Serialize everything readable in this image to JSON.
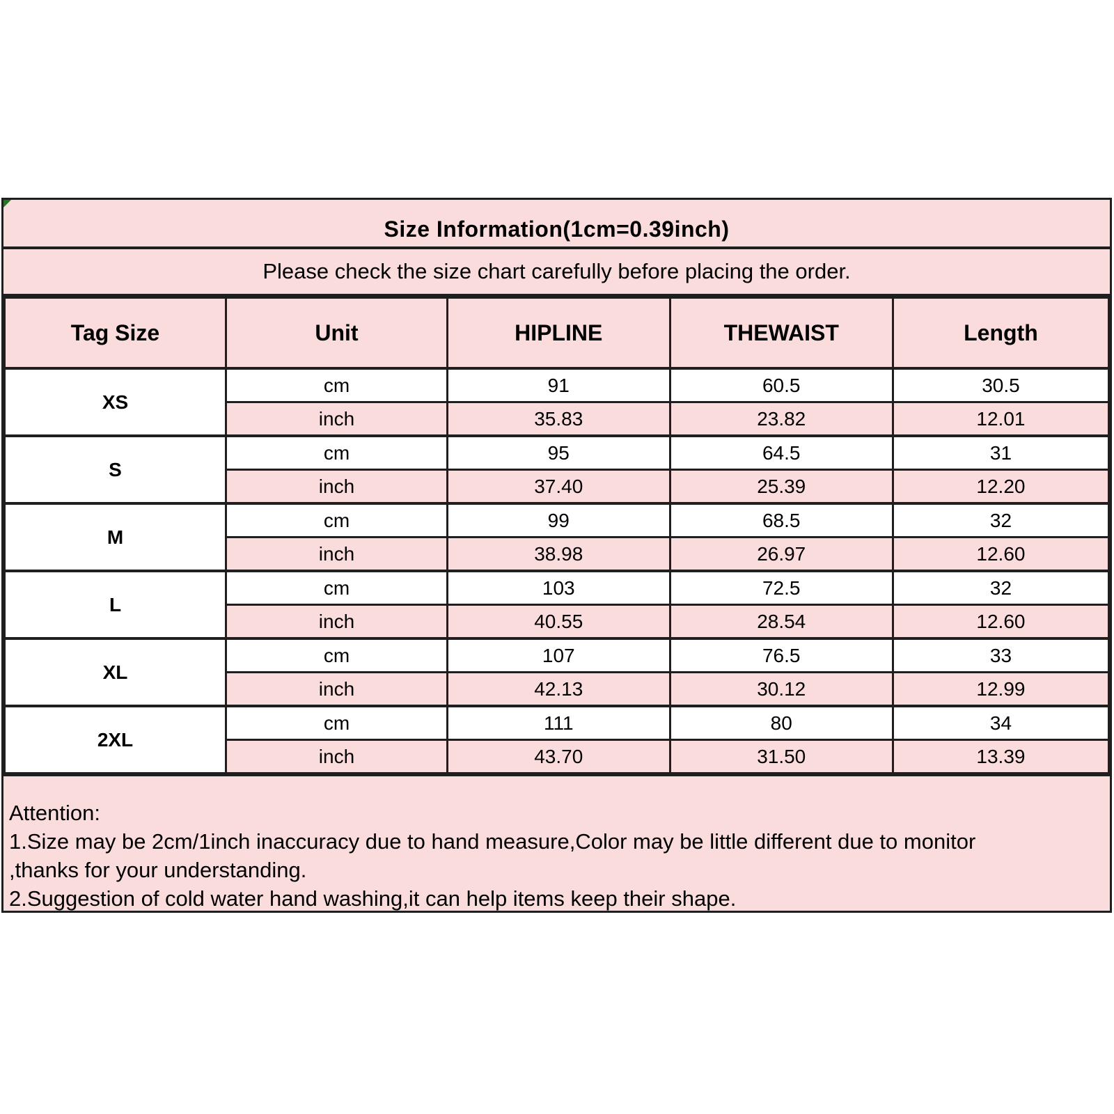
{
  "chart_data": {
    "type": "table",
    "title": "Size Information(1cm=0.39inch)",
    "subtitle": "Please check the size chart carefully before placing the order.",
    "columns": [
      "Tag Size",
      "Unit",
      "HIPLINE",
      "THEWAIST",
      "Length"
    ],
    "unit_labels": [
      "cm",
      "inch"
    ],
    "rows": [
      {
        "size": "XS",
        "cm": [
          "91",
          "60.5",
          "30.5"
        ],
        "inch": [
          "35.83",
          "23.82",
          "12.01"
        ]
      },
      {
        "size": "S",
        "cm": [
          "95",
          "64.5",
          "31"
        ],
        "inch": [
          "37.40",
          "25.39",
          "12.20"
        ]
      },
      {
        "size": "M",
        "cm": [
          "99",
          "68.5",
          "32"
        ],
        "inch": [
          "38.98",
          "26.97",
          "12.60"
        ]
      },
      {
        "size": "L",
        "cm": [
          "103",
          "72.5",
          "32"
        ],
        "inch": [
          "40.55",
          "28.54",
          "12.60"
        ]
      },
      {
        "size": "XL",
        "cm": [
          "107",
          "76.5",
          "33"
        ],
        "inch": [
          "42.13",
          "30.12",
          "12.99"
        ]
      },
      {
        "size": "2XL",
        "cm": [
          "111",
          "80",
          "34"
        ],
        "inch": [
          "43.70",
          "31.50",
          "13.39"
        ]
      }
    ]
  },
  "attention": {
    "heading": "Attention:",
    "line1": "1.Size may be 2cm/1inch inaccuracy due to hand measure,Color may be little different due to monitor",
    "line2": ",thanks for your understanding.",
    "line3": "2.Suggestion of cold water hand washing,it can help items keep their shape."
  },
  "colors": {
    "pink": "#fbdcdc",
    "border": "#1f1f1f",
    "corner_green": "#1e7c1e"
  }
}
